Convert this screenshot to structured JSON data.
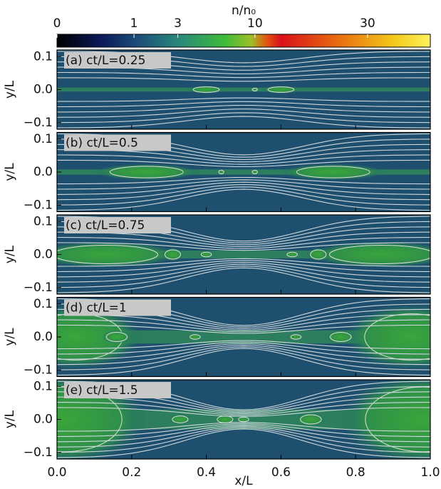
{
  "chart_data": {
    "type": "heatmap",
    "title": "n/n₀",
    "colorbar": {
      "clim": [
        0,
        47
      ],
      "power": 0.41,
      "ticks": [
        0,
        1,
        3,
        10,
        30
      ]
    },
    "panels": [
      {
        "label": "(a) ct/L=0.25"
      },
      {
        "label": "(b) ct/L=0.5"
      },
      {
        "label": "(c) ct/L=0.75"
      },
      {
        "label": "(d) ct/L=1"
      },
      {
        "label": "(e) ct/L=1.5"
      }
    ],
    "xlabel": "x/L",
    "ylabel": "y/L",
    "xlim": [
      0,
      1
    ],
    "xticks": [
      {
        "value": 0,
        "label": "0.0"
      },
      {
        "value": 0.2,
        "label": "0.2"
      },
      {
        "value": 0.4,
        "label": "0.4"
      },
      {
        "value": 0.6,
        "label": "0.6"
      },
      {
        "value": 0.8,
        "label": "0.8"
      },
      {
        "value": 1,
        "label": "1.0"
      }
    ],
    "ylim": [
      -0.12,
      0.12
    ],
    "yticks": [
      {
        "value": -0.1,
        "label": "−0.1"
      },
      {
        "value": 0,
        "label": "0.0"
      },
      {
        "value": 0.1,
        "label": "0.1"
      }
    ]
  }
}
